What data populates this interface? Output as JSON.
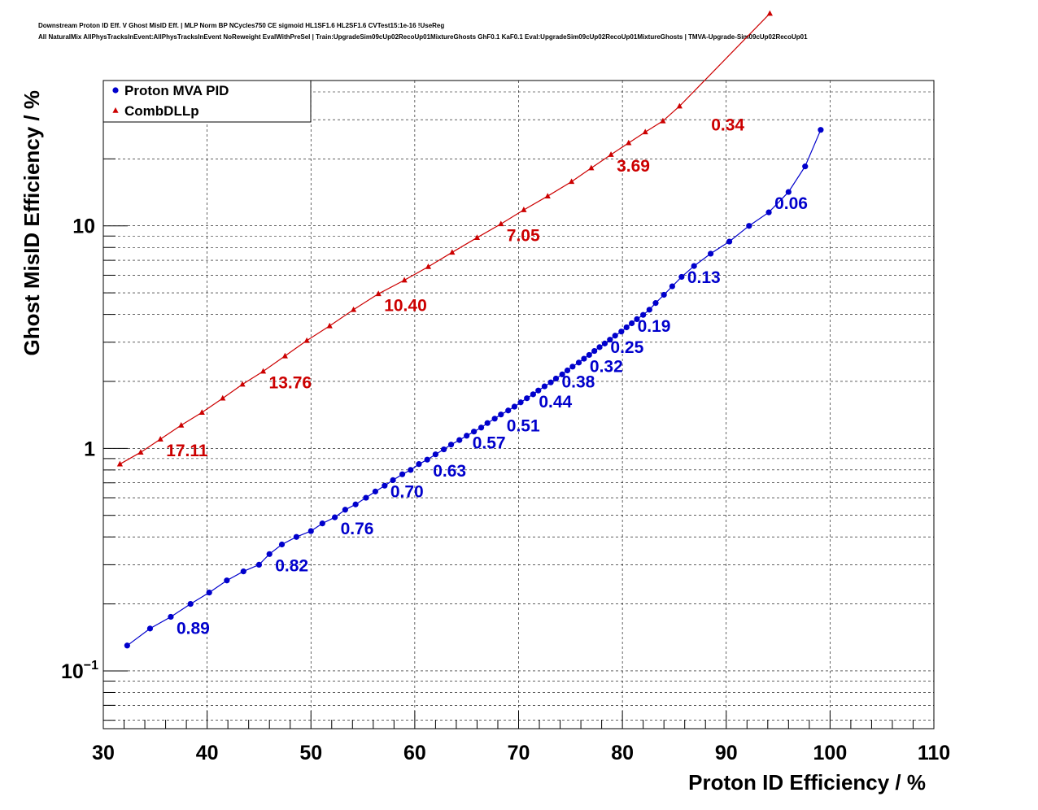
{
  "title_lines": [
    "Downstream Proton ID Eff. V Ghost MisID Eff. | MLP Norm BP NCycles750 CE sigmoid HL1SF1.6 HL2SF1.6 CVTest15:1e-16 !UseReg",
    "All NaturalMix AllPhysTracksInEvent:AllPhysTracksInEvent NoReweight EvalWithPreSel | Train:UpgradeSim09cUp02RecoUp01MixtureGhosts GhF0.1 KaF0.1 Eval:UpgradeSim09cUp02RecoUp01MixtureGhosts | TMVA-Upgrade-Sim09cUp02RecoUp01"
  ],
  "chart_data": {
    "type": "line",
    "xlabel": "Proton ID Efficiency / %",
    "ylabel": "Ghost MisID Efficiency / %",
    "xlim": [
      30,
      110
    ],
    "ylim": [
      0.055,
      45
    ],
    "yscale": "log",
    "grid": true,
    "legend_position": "top-left",
    "x_tick_labels": [
      "30",
      "40",
      "50",
      "60",
      "70",
      "80",
      "90",
      "100",
      "110"
    ],
    "y_tick_labels": [
      {
        "value": 0.1,
        "base": "10",
        "exp": "−1"
      },
      {
        "value": 1,
        "text": "1"
      },
      {
        "value": 10,
        "text": "10"
      }
    ],
    "series": [
      {
        "name": "Proton MVA PID",
        "color": "#0000cc",
        "marker": "circle",
        "x": [
          32.3,
          34.5,
          36.5,
          38.4,
          40.2,
          41.9,
          43.5,
          45.0,
          46.0,
          47.2,
          48.6,
          50.0,
          51.1,
          52.3,
          53.3,
          54.3,
          55.3,
          56.2,
          57.1,
          57.9,
          58.8,
          59.6,
          60.4,
          61.2,
          62.0,
          62.8,
          63.5,
          64.3,
          65.0,
          65.7,
          66.4,
          67.0,
          67.7,
          68.3,
          69.0,
          69.6,
          70.2,
          70.8,
          71.4,
          71.9,
          72.5,
          73.1,
          73.6,
          74.2,
          74.7,
          75.2,
          75.8,
          76.3,
          76.8,
          77.3,
          77.8,
          78.3,
          78.8,
          79.3,
          79.9,
          80.4,
          80.9,
          81.4,
          82.0,
          82.6,
          83.2,
          84.0,
          84.8,
          85.7,
          86.9,
          88.5,
          90.3,
          92.2,
          94.1,
          96.0,
          97.6,
          99.1
        ],
        "y": [
          0.13,
          0.155,
          0.175,
          0.2,
          0.225,
          0.255,
          0.28,
          0.3,
          0.335,
          0.37,
          0.4,
          0.425,
          0.46,
          0.49,
          0.53,
          0.56,
          0.6,
          0.64,
          0.68,
          0.72,
          0.765,
          0.8,
          0.85,
          0.89,
          0.94,
          0.99,
          1.04,
          1.09,
          1.14,
          1.19,
          1.24,
          1.3,
          1.36,
          1.42,
          1.48,
          1.54,
          1.61,
          1.68,
          1.75,
          1.82,
          1.9,
          1.98,
          2.06,
          2.15,
          2.24,
          2.33,
          2.43,
          2.53,
          2.63,
          2.74,
          2.85,
          2.96,
          3.08,
          3.21,
          3.35,
          3.5,
          3.65,
          3.81,
          3.98,
          4.2,
          4.5,
          4.9,
          5.35,
          5.9,
          6.6,
          7.5,
          8.5,
          10.0,
          11.5,
          14.2,
          18.5,
          27.0
        ],
        "labels": [
          {
            "text": "0.89",
            "x": 36.5,
            "y": 0.175
          },
          {
            "text": "0.82",
            "x": 46.0,
            "y": 0.335
          },
          {
            "text": "0.76",
            "x": 52.3,
            "y": 0.49
          },
          {
            "text": "0.70",
            "x": 57.1,
            "y": 0.72
          },
          {
            "text": "0.63",
            "x": 61.2,
            "y": 0.89
          },
          {
            "text": "0.57",
            "x": 65.0,
            "y": 1.19
          },
          {
            "text": "0.51",
            "x": 68.3,
            "y": 1.42
          },
          {
            "text": "0.44",
            "x": 71.4,
            "y": 1.82
          },
          {
            "text": "0.38",
            "x": 73.6,
            "y": 2.24
          },
          {
            "text": "0.32",
            "x": 76.3,
            "y": 2.63
          },
          {
            "text": "0.25",
            "x": 78.3,
            "y": 3.21
          },
          {
            "text": "0.19",
            "x": 80.9,
            "y": 3.98
          },
          {
            "text": "0.13",
            "x": 85.7,
            "y": 6.6
          },
          {
            "text": "0.06",
            "x": 94.1,
            "y": 14.2
          }
        ]
      },
      {
        "name": "CombDLLp",
        "color": "#cc0000",
        "marker": "triangle",
        "x": [
          31.6,
          33.6,
          35.5,
          37.5,
          39.5,
          41.5,
          43.4,
          45.4,
          47.5,
          49.6,
          51.8,
          54.1,
          56.5,
          59.0,
          61.3,
          63.6,
          66.0,
          68.3,
          70.5,
          72.8,
          75.1,
          77.0,
          78.9,
          80.6,
          82.2,
          83.9,
          85.5,
          94.2
        ],
        "y": [
          0.85,
          0.96,
          1.1,
          1.27,
          1.45,
          1.68,
          1.94,
          2.22,
          2.6,
          3.05,
          3.55,
          4.2,
          4.95,
          5.7,
          6.55,
          7.6,
          8.85,
          10.2,
          11.8,
          13.6,
          15.8,
          18.2,
          20.9,
          23.6,
          26.4,
          29.6,
          34.5,
          90.0
        ],
        "labels": [
          {
            "text": "17.11",
            "x": 35.5,
            "y": 1.1
          },
          {
            "text": "13.76",
            "x": 45.4,
            "y": 2.22
          },
          {
            "text": "10.40",
            "x": 56.5,
            "y": 4.95
          },
          {
            "text": "7.05",
            "x": 68.3,
            "y": 10.2
          },
          {
            "text": "3.69",
            "x": 78.9,
            "y": 20.9
          },
          {
            "text": "0.34",
            "x": 88.0,
            "y": 32.0
          }
        ]
      }
    ]
  }
}
